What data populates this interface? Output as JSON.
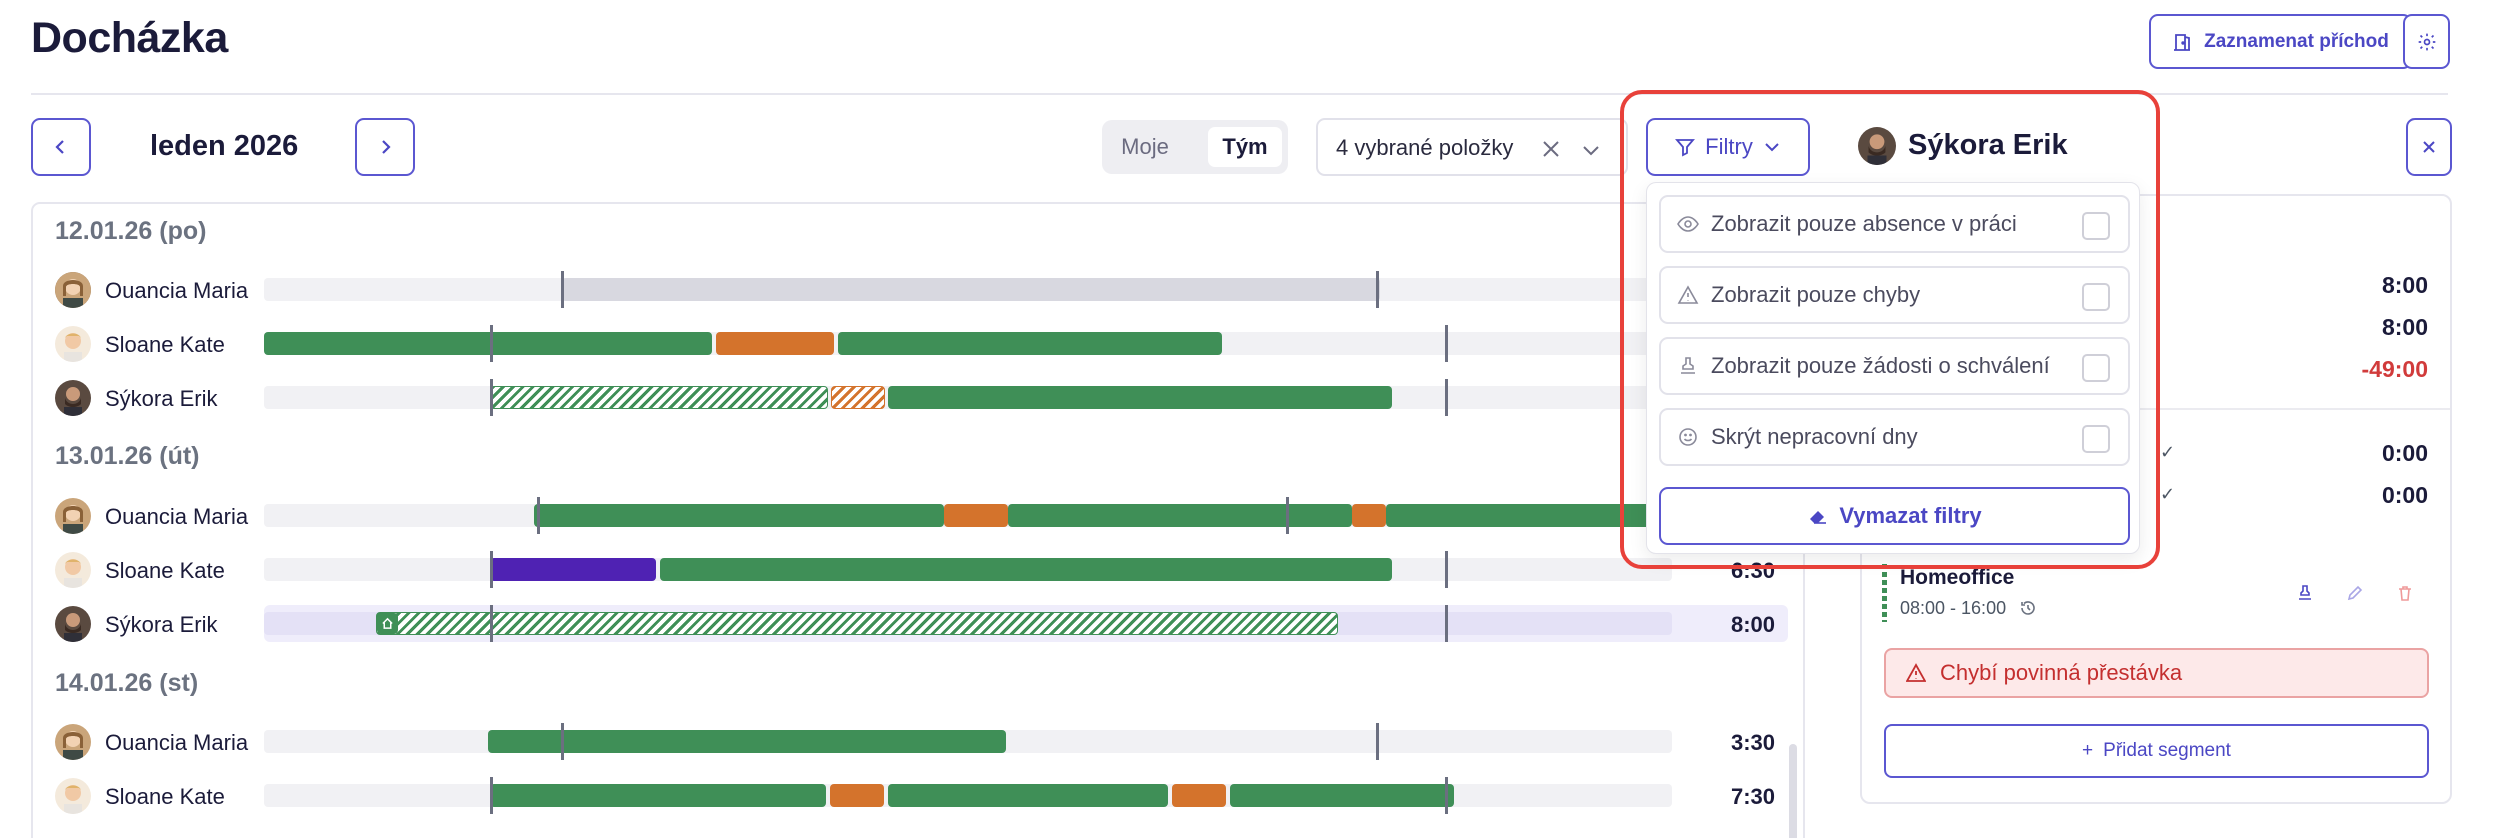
{
  "header": {
    "title": "Docházka",
    "record_button": "Zaznamenat příchod",
    "settings_icon": "gear-icon"
  },
  "toolbar": {
    "month": "leden 2026",
    "view_toggle": {
      "options": [
        "Moje",
        "Tým"
      ],
      "selected": "Tým"
    },
    "selection": "4 vybrané položky",
    "filters_label": "Filtry"
  },
  "schedule": {
    "days": [
      {
        "label": "12.01.26 (po)",
        "rows": [
          {
            "name": "Ouancia Maria",
            "total": ""
          },
          {
            "name": "Sloane Kate",
            "total": ""
          },
          {
            "name": "Sýkora Erik",
            "total": ""
          }
        ]
      },
      {
        "label": "13.01.26 (út)",
        "rows": [
          {
            "name": "Ouancia Maria",
            "total": ""
          },
          {
            "name": "Sloane Kate",
            "total": "6:30"
          },
          {
            "name": "Sýkora Erik",
            "total": "8:00"
          }
        ]
      },
      {
        "label": "14.01.26 (st)",
        "rows": [
          {
            "name": "Ouancia Maria",
            "total": "3:30"
          },
          {
            "name": "Sloane Kate",
            "total": "7:30"
          }
        ]
      }
    ]
  },
  "filters": {
    "items": [
      {
        "label": "Zobrazit pouze absence v práci",
        "icon": "eye-icon",
        "checked": false
      },
      {
        "label": "Zobrazit pouze chyby",
        "icon": "warning-icon",
        "checked": false
      },
      {
        "label": "Zobrazit pouze žádosti o schválení",
        "icon": "stamp-icon",
        "checked": false
      },
      {
        "label": "Skrýt nepracovní dny",
        "icon": "smile-icon",
        "checked": false
      }
    ],
    "clear_label": "Vymazat filtry"
  },
  "detail": {
    "name": "Sýkora Erik",
    "values": [
      "8:00",
      "8:00",
      "-49:00",
      "0:00",
      "0:00"
    ],
    "segment": {
      "title": "Homeoffice",
      "time": "08:00 - 16:00"
    },
    "alert": "Chybí povinná přestávka",
    "add_segment": "Přidat segment"
  },
  "colors": {
    "accent": "#5b57d1",
    "work": "#3f8f57",
    "break": "#d4732c",
    "absence": "#4f22b3",
    "error": "#d13b3b"
  }
}
